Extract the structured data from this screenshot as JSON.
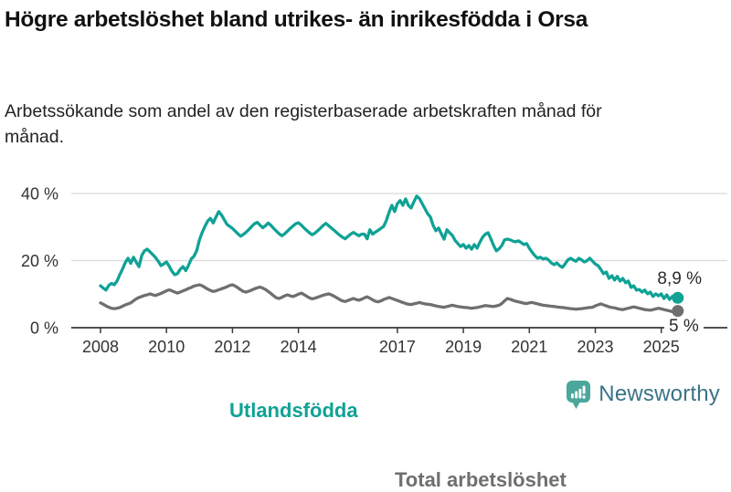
{
  "header": {
    "title": "Högre arbetslöshet bland utrikes- än inrikesfödda i Orsa",
    "subtitle": "Arbetssökande som andel av den registerbaserade arbetskraften månad för månad."
  },
  "chart_data": {
    "type": "line",
    "unit": "%",
    "frequency": "monthly",
    "x_start": {
      "year": 2008,
      "month": 1
    },
    "x_end": {
      "year": 2025,
      "month": 7
    },
    "x_ticks": [
      2008,
      2010,
      2012,
      2014,
      2017,
      2019,
      2021,
      2023,
      2025
    ],
    "y_ticks": [
      {
        "value": 0,
        "label": "0 %"
      },
      {
        "value": 20,
        "label": "20 %"
      },
      {
        "value": 40,
        "label": "40 %"
      }
    ],
    "ylim": [
      0,
      44
    ],
    "grid": "horizontal",
    "legend_position": "inline-labels",
    "series": [
      {
        "name": "Utlandsfödda",
        "color": "#0fa295",
        "end_label": "8,9 %",
        "end_value": 8.9,
        "values": [
          12.5,
          11.8,
          11.2,
          12.6,
          13.2,
          12.8,
          13.9,
          15.8,
          17.5,
          19.4,
          20.7,
          19.2,
          21.0,
          19.5,
          18.2,
          21.5,
          22.9,
          23.4,
          22.6,
          21.8,
          20.9,
          19.8,
          18.5,
          19.0,
          19.6,
          18.3,
          16.8,
          15.8,
          16.1,
          17.4,
          18.2,
          17.0,
          18.6,
          20.5,
          21.3,
          23.0,
          26.2,
          28.4,
          30.2,
          31.8,
          32.6,
          31.2,
          33.0,
          34.6,
          33.6,
          32.2,
          30.8,
          30.2,
          29.6,
          28.8,
          28.0,
          27.3,
          27.8,
          28.5,
          29.3,
          30.2,
          31.0,
          31.4,
          30.6,
          29.8,
          30.4,
          31.2,
          30.5,
          29.6,
          28.8,
          28.0,
          27.4,
          28.0,
          28.8,
          29.6,
          30.3,
          31.0,
          31.3,
          30.6,
          29.8,
          29.0,
          28.3,
          27.7,
          28.2,
          28.9,
          29.7,
          30.5,
          31.1,
          30.4,
          29.7,
          29.0,
          28.3,
          27.6,
          27.0,
          26.5,
          27.2,
          27.9,
          28.4,
          27.9,
          27.4,
          27.9,
          27.9,
          26.5,
          29.2,
          27.9,
          28.5,
          29.0,
          29.6,
          30.2,
          32.0,
          34.5,
          36.5,
          34.6,
          37.0,
          37.9,
          36.5,
          38.4,
          36.5,
          35.7,
          37.5,
          39.2,
          38.5,
          37.0,
          35.5,
          34.0,
          33.0,
          30.5,
          28.9,
          29.7,
          28.0,
          26.4,
          29.2,
          28.3,
          27.5,
          26.0,
          25.1,
          24.2,
          24.8,
          23.7,
          24.5,
          23.4,
          24.8,
          23.7,
          25.5,
          27.0,
          27.9,
          28.3,
          26.5,
          24.5,
          22.9,
          23.5,
          24.5,
          26.2,
          26.4,
          26.2,
          25.8,
          25.6,
          25.9,
          25.4,
          24.8,
          25.1,
          23.7,
          22.5,
          21.5,
          20.7,
          21.0,
          20.5,
          20.7,
          20.2,
          19.3,
          18.8,
          19.3,
          18.5,
          18.0,
          19.0,
          20.2,
          20.7,
          20.2,
          19.8,
          20.7,
          20.2,
          19.6,
          20.0,
          20.7,
          19.8,
          19.0,
          18.5,
          17.4,
          16.1,
          16.6,
          14.7,
          15.5,
          14.2,
          15.3,
          13.9,
          14.7,
          13.4,
          13.9,
          12.0,
          12.5,
          11.2,
          11.4,
          10.6,
          11.2,
          10.1,
          10.6,
          9.3,
          10.1,
          9.5,
          10.1,
          8.7,
          9.8,
          8.4,
          9.3,
          7.9,
          8.9
        ]
      },
      {
        "name": "Total arbetslöshet",
        "color": "#6f6f6f",
        "end_label": "5 %",
        "end_value": 5,
        "values": [
          7.4,
          7.0,
          6.5,
          6.1,
          5.8,
          5.7,
          5.8,
          6.0,
          6.4,
          6.8,
          7.1,
          7.4,
          8.0,
          8.6,
          9.0,
          9.3,
          9.6,
          9.8,
          10.1,
          9.8,
          9.6,
          9.9,
          10.2,
          10.6,
          11.0,
          11.3,
          11.0,
          10.6,
          10.3,
          10.6,
          11.0,
          11.3,
          11.7,
          12.0,
          12.4,
          12.6,
          12.8,
          12.5,
          12.0,
          11.5,
          11.1,
          10.8,
          11.0,
          11.3,
          11.6,
          11.9,
          12.2,
          12.6,
          12.8,
          12.4,
          11.9,
          11.3,
          10.8,
          10.6,
          10.9,
          11.2,
          11.6,
          11.9,
          12.1,
          11.8,
          11.4,
          10.8,
          10.2,
          9.5,
          8.9,
          8.7,
          9.1,
          9.5,
          9.8,
          9.5,
          9.3,
          9.6,
          10.0,
          10.3,
          9.9,
          9.4,
          8.9,
          8.6,
          8.8,
          9.1,
          9.4,
          9.7,
          9.9,
          10.1,
          9.8,
          9.4,
          8.9,
          8.4,
          8.0,
          7.8,
          8.1,
          8.4,
          8.7,
          8.4,
          8.2,
          8.5,
          8.9,
          9.2,
          8.8,
          8.3,
          7.9,
          7.7,
          8.0,
          8.4,
          8.7,
          9.0,
          8.7,
          8.4,
          8.1,
          7.8,
          7.5,
          7.2,
          7.0,
          6.9,
          7.1,
          7.3,
          7.5,
          7.3,
          7.1,
          7.0,
          6.9,
          6.7,
          6.5,
          6.3,
          6.2,
          6.1,
          6.3,
          6.5,
          6.7,
          6.5,
          6.3,
          6.2,
          6.1,
          6.0,
          5.9,
          5.8,
          5.9,
          6.0,
          6.2,
          6.4,
          6.6,
          6.5,
          6.4,
          6.3,
          6.5,
          6.7,
          7.2,
          8.0,
          8.7,
          8.5,
          8.2,
          7.9,
          7.7,
          7.5,
          7.3,
          7.2,
          7.4,
          7.5,
          7.3,
          7.1,
          6.9,
          6.7,
          6.6,
          6.5,
          6.4,
          6.3,
          6.2,
          6.1,
          6.0,
          5.9,
          5.8,
          5.7,
          5.6,
          5.5,
          5.6,
          5.7,
          5.8,
          5.9,
          6.0,
          6.1,
          6.5,
          6.8,
          7.1,
          6.8,
          6.5,
          6.2,
          6.0,
          5.9,
          5.7,
          5.5,
          5.4,
          5.6,
          5.8,
          6.0,
          6.2,
          6.0,
          5.8,
          5.6,
          5.4,
          5.3,
          5.2,
          5.4,
          5.6,
          5.8,
          5.6,
          5.4,
          5.2,
          5.0,
          4.8,
          4.9,
          5.0
        ]
      }
    ]
  },
  "footer": {
    "brand": "Newsworthy",
    "logo_icon": "newsworthy-speech-bubble-bar-chart-icon"
  },
  "colors": {
    "accent_teal": "#0fa295",
    "series_gray": "#6f6f6f",
    "grid": "#dadada",
    "axis": "#3a3a3a",
    "tick_text": "#333333",
    "logo_teal": "#4ba79c",
    "logo_text": "#3a7387"
  }
}
